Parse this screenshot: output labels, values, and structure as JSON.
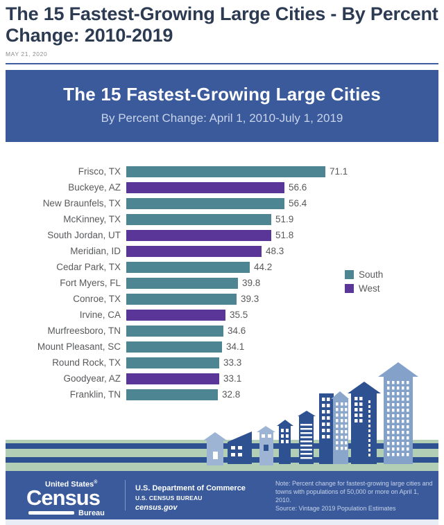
{
  "page": {
    "title": "The 15 Fastest-Growing Large Cities - By Percent Change: 2010-2019",
    "date": "MAY 21, 2020"
  },
  "banner": {
    "title": "The 15 Fastest-Growing Large Cities",
    "subtitle": "By Percent Change: April 1, 2010-July 1, 2019"
  },
  "legend": {
    "south_label": "South",
    "west_label": "West"
  },
  "colors": {
    "south": "#4e8593",
    "west": "#5a3699",
    "banner_blue": "#3a5a9c",
    "stripe_blue": "#2d5191",
    "stripe_green": "#b2cfb6"
  },
  "chart_data": {
    "type": "bar",
    "orientation": "horizontal",
    "title": "The 15 Fastest-Growing Large Cities",
    "subtitle": "By Percent Change: April 1, 2010-July 1, 2019",
    "value_unit": "percent change",
    "xlim": [
      0,
      75
    ],
    "grid": false,
    "legend_position": "right",
    "categories": [
      "Frisco, TX",
      "Buckeye, AZ",
      "New Braunfels, TX",
      "McKinney, TX",
      "South Jordan, UT",
      "Meridian, ID",
      "Cedar Park, TX",
      "Fort Myers, FL",
      "Conroe, TX",
      "Irvine, CA",
      "Murfreesboro, TN",
      "Mount Pleasant, SC",
      "Round Rock, TX",
      "Goodyear, AZ",
      "Franklin, TN"
    ],
    "values": [
      71.1,
      56.6,
      56.4,
      51.9,
      51.8,
      48.3,
      44.2,
      39.8,
      39.3,
      35.5,
      34.6,
      34.1,
      33.3,
      33.1,
      32.8
    ],
    "regions": [
      "South",
      "West",
      "South",
      "South",
      "West",
      "West",
      "South",
      "South",
      "South",
      "West",
      "South",
      "South",
      "South",
      "West",
      "South"
    ],
    "series_colors": {
      "South": "#4e8593",
      "West": "#5a3699"
    }
  },
  "footer": {
    "logo_top": "United States",
    "logo_reg": "®",
    "logo_main": "Census",
    "logo_bureau": "Bureau",
    "dept_line1": "U.S. Department of Commerce",
    "dept_line2": "U.S. CENSUS BUREAU",
    "dept_line3": "census.gov",
    "note": "Note: Percent change for fastest-growing large cities and towns with populations of 50,000 or more on April 1, 2010.",
    "source": "Source: Vintage 2019 Population Estimates"
  }
}
